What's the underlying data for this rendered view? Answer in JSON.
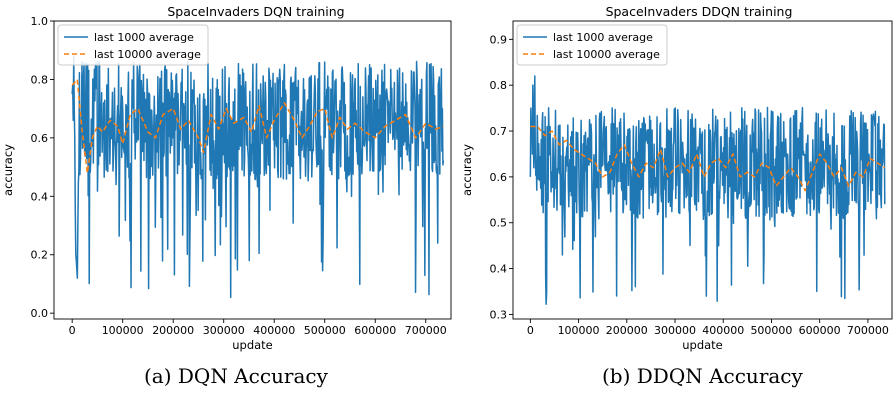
{
  "captions": [
    "(a) DQN Accuracy",
    "(b) DDQN Accuracy"
  ],
  "chart_data": [
    {
      "type": "line",
      "title": "SpaceInvaders DQN training",
      "xlabel": "update",
      "ylabel": "accuracy",
      "xlim": [
        -36000,
        750000
      ],
      "ylim": [
        -0.02,
        1.0
      ],
      "xticks": [
        0,
        100000,
        200000,
        300000,
        400000,
        500000,
        600000,
        700000
      ],
      "yticks": [
        0.0,
        0.2,
        0.4,
        0.6,
        0.8,
        1.0
      ],
      "ytick_labels": [
        "0.0",
        "0.2",
        "0.4",
        "0.6",
        "0.8",
        "1.0"
      ],
      "legend": "top-left",
      "grid": false,
      "series": [
        {
          "name": "last 1000 average",
          "color": "#1f77b4",
          "style": "solid",
          "base": 0.66,
          "spread": 0.3,
          "dip_chance": 0.1,
          "dip_floor": 0.05,
          "ymax": 0.95,
          "start": [
            0.75,
            0.78,
            0.66,
            0.88,
            0.7,
            0.6,
            0.35,
            0.2,
            0.18,
            0.15,
            0.12,
            0.3,
            0.45
          ]
        },
        {
          "name": "last 10000 average",
          "color": "#ff7f0e",
          "style": "dashed",
          "points": [
            [
              0,
              0.78
            ],
            [
              10000,
              0.8
            ],
            [
              20000,
              0.62
            ],
            [
              30000,
              0.48
            ],
            [
              40000,
              0.6
            ],
            [
              50000,
              0.64
            ],
            [
              60000,
              0.62
            ],
            [
              75000,
              0.66
            ],
            [
              90000,
              0.64
            ],
            [
              100000,
              0.58
            ],
            [
              115000,
              0.68
            ],
            [
              130000,
              0.7
            ],
            [
              150000,
              0.62
            ],
            [
              165000,
              0.6
            ],
            [
              180000,
              0.68
            ],
            [
              200000,
              0.7
            ],
            [
              215000,
              0.63
            ],
            [
              230000,
              0.66
            ],
            [
              250000,
              0.6
            ],
            [
              260000,
              0.55
            ],
            [
              275000,
              0.68
            ],
            [
              290000,
              0.63
            ],
            [
              305000,
              0.7
            ],
            [
              320000,
              0.65
            ],
            [
              340000,
              0.67
            ],
            [
              355000,
              0.62
            ],
            [
              370000,
              0.71
            ],
            [
              385000,
              0.6
            ],
            [
              400000,
              0.66
            ],
            [
              420000,
              0.72
            ],
            [
              440000,
              0.66
            ],
            [
              455000,
              0.6
            ],
            [
              470000,
              0.64
            ],
            [
              485000,
              0.69
            ],
            [
              500000,
              0.7
            ],
            [
              515000,
              0.6
            ],
            [
              530000,
              0.67
            ],
            [
              545000,
              0.63
            ],
            [
              560000,
              0.65
            ],
            [
              580000,
              0.62
            ],
            [
              600000,
              0.6
            ],
            [
              620000,
              0.64
            ],
            [
              640000,
              0.66
            ],
            [
              660000,
              0.68
            ],
            [
              680000,
              0.6
            ],
            [
              700000,
              0.65
            ],
            [
              720000,
              0.63
            ],
            [
              735000,
              0.64
            ]
          ]
        }
      ]
    },
    {
      "type": "line",
      "title": "SpaceInvaders DDQN training",
      "xlabel": "update",
      "ylabel": "accuracy",
      "xlim": [
        -36000,
        750000
      ],
      "ylim": [
        0.29,
        0.94
      ],
      "xticks": [
        0,
        100000,
        200000,
        300000,
        400000,
        500000,
        600000,
        700000
      ],
      "yticks": [
        0.3,
        0.4,
        0.5,
        0.6,
        0.7,
        0.8,
        0.9
      ],
      "ytick_labels": [
        "0.3",
        "0.4",
        "0.5",
        "0.6",
        "0.7",
        "0.8",
        "0.9"
      ],
      "legend": "top-left",
      "grid": false,
      "series": [
        {
          "name": "last 1000 average",
          "color": "#1f77b4",
          "style": "solid",
          "base": 0.63,
          "spread": 0.18,
          "dip_chance": 0.08,
          "dip_floor": 0.32,
          "ymax": 0.9,
          "start": [
            0.6,
            0.75,
            0.68,
            0.72,
            0.65,
            0.8,
            0.7,
            0.62,
            0.75,
            0.82,
            0.65
          ]
        },
        {
          "name": "last 10000 average",
          "color": "#ff7f0e",
          "style": "dashed",
          "points": [
            [
              0,
              0.71
            ],
            [
              15000,
              0.71
            ],
            [
              30000,
              0.69
            ],
            [
              45000,
              0.7
            ],
            [
              60000,
              0.67
            ],
            [
              75000,
              0.68
            ],
            [
              90000,
              0.66
            ],
            [
              105000,
              0.65
            ],
            [
              120000,
              0.64
            ],
            [
              135000,
              0.63
            ],
            [
              150000,
              0.6
            ],
            [
              165000,
              0.61
            ],
            [
              180000,
              0.65
            ],
            [
              195000,
              0.67
            ],
            [
              210000,
              0.63
            ],
            [
              225000,
              0.6
            ],
            [
              240000,
              0.63
            ],
            [
              255000,
              0.62
            ],
            [
              270000,
              0.66
            ],
            [
              285000,
              0.6
            ],
            [
              300000,
              0.62
            ],
            [
              315000,
              0.63
            ],
            [
              330000,
              0.61
            ],
            [
              345000,
              0.65
            ],
            [
              360000,
              0.6
            ],
            [
              375000,
              0.63
            ],
            [
              390000,
              0.64
            ],
            [
              405000,
              0.62
            ],
            [
              420000,
              0.65
            ],
            [
              435000,
              0.6
            ],
            [
              450000,
              0.61
            ],
            [
              465000,
              0.6
            ],
            [
              480000,
              0.63
            ],
            [
              495000,
              0.62
            ],
            [
              510000,
              0.58
            ],
            [
              525000,
              0.6
            ],
            [
              540000,
              0.62
            ],
            [
              555000,
              0.6
            ],
            [
              570000,
              0.57
            ],
            [
              585000,
              0.61
            ],
            [
              600000,
              0.65
            ],
            [
              615000,
              0.63
            ],
            [
              630000,
              0.6
            ],
            [
              645000,
              0.62
            ],
            [
              660000,
              0.58
            ],
            [
              675000,
              0.61
            ],
            [
              690000,
              0.6
            ],
            [
              705000,
              0.64
            ],
            [
              720000,
              0.63
            ],
            [
              735000,
              0.62
            ]
          ]
        }
      ]
    }
  ]
}
